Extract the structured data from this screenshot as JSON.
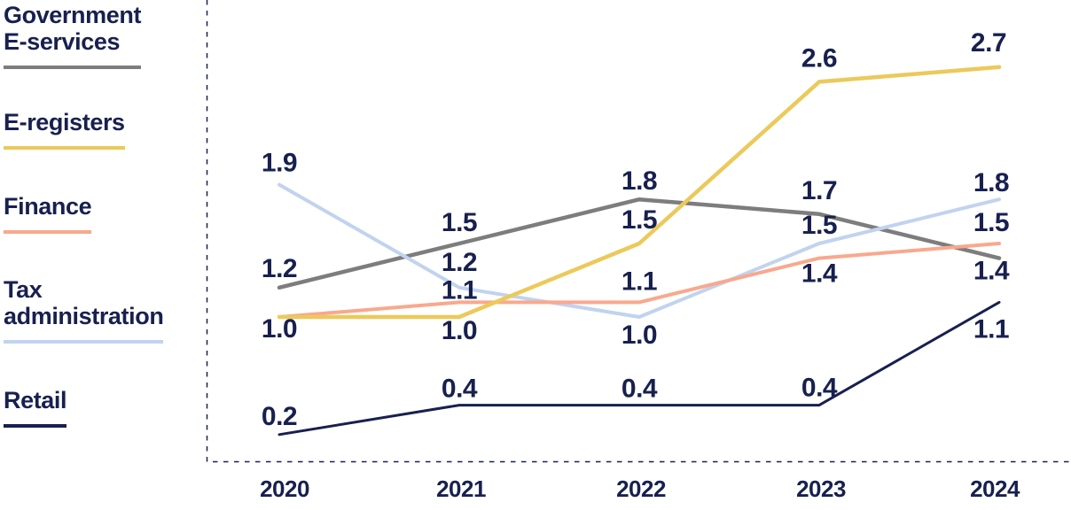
{
  "colors": {
    "text": "#18204f",
    "background": "#ffffff",
    "axis_dash": "#18204f"
  },
  "legend": {
    "items": [
      {
        "label": "Government\nE-services",
        "color": "#7d7d7d"
      },
      {
        "label": "E-registers",
        "color": "#ecc95a"
      },
      {
        "label": "Finance",
        "color": "#f9a88d"
      },
      {
        "label": "Tax\nadministration",
        "color": "#c1d3ee"
      },
      {
        "label": "Retail",
        "color": "#18204f"
      }
    ]
  },
  "chart_data": {
    "type": "line",
    "title": "",
    "xlabel": "",
    "ylabel": "",
    "x_categories": [
      "2020",
      "2021",
      "2022",
      "2023",
      "2024"
    ],
    "ylim": [
      0,
      3.2
    ],
    "grid": false,
    "legend_position": "left",
    "axis_style": "dashed-left-and-bottom-border-only",
    "series": [
      {
        "name": "Government E-services",
        "color": "#7d7d7d",
        "stroke_width": 4.5,
        "values": [
          1.2,
          1.5,
          1.8,
          1.7,
          1.4
        ],
        "point_labels": [
          "1.2",
          "1.5",
          "1.8",
          "1.7",
          "1.4"
        ],
        "label_dx": [
          0,
          0,
          0,
          0,
          -9
        ],
        "label_dy": [
          -12,
          -14,
          -11,
          -17,
          24
        ]
      },
      {
        "name": "E-registers",
        "color": "#ecc95a",
        "stroke_width": 4.5,
        "values": [
          1.0,
          1.0,
          1.5,
          2.6,
          2.7
        ],
        "point_labels": [
          null,
          "1.0",
          "1.5",
          "2.6",
          "2.7"
        ],
        "label_dx": [
          0,
          0,
          0,
          0,
          -12
        ],
        "label_dy": [
          0,
          25,
          -17,
          -17,
          -18
        ]
      },
      {
        "name": "Finance",
        "color": "#f9a88d",
        "stroke_width": 4,
        "values": [
          1.0,
          1.1,
          1.1,
          1.4,
          1.5
        ],
        "point_labels": [
          "1.0",
          "1.1",
          "1.1",
          "1.4",
          "1.5"
        ],
        "label_dx": [
          0,
          0,
          0,
          0,
          -9
        ],
        "label_dy": [
          23,
          -4,
          -14,
          27,
          -14
        ]
      },
      {
        "name": "Tax administration",
        "color": "#c1d3ee",
        "stroke_width": 4,
        "values": [
          1.9,
          1.2,
          1.0,
          1.5,
          1.8
        ],
        "point_labels": [
          "1.9",
          "1.2",
          "1.0",
          "1.5",
          "1.8"
        ],
        "label_dx": [
          0,
          0,
          0,
          0,
          -9
        ],
        "label_dy": [
          -15,
          -19,
          30,
          -11,
          -9
        ]
      },
      {
        "name": "Retail",
        "color": "#18204f",
        "stroke_width": 3,
        "values": [
          0.2,
          0.4,
          0.4,
          0.4,
          1.1
        ],
        "point_labels": [
          "0.2",
          "0.4",
          "0.4",
          "0.4",
          "1.1"
        ],
        "label_dx": [
          0,
          0,
          0,
          0,
          -9
        ],
        "label_dy": [
          -11,
          -9,
          -9,
          -10,
          40
        ]
      }
    ],
    "render_order": [
      0,
      3,
      2,
      1,
      4
    ]
  }
}
